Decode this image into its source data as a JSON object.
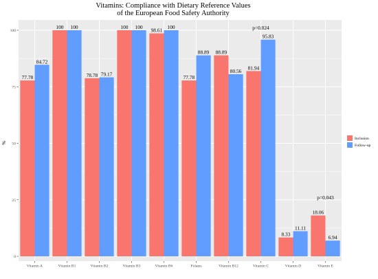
{
  "chart_data": {
    "type": "bar",
    "title": [
      "Vitamins: Compliance with Dietary Reference Values",
      "of the European Food Safety Authority"
    ],
    "xlabel": "",
    "ylabel": "%",
    "ylim": [
      0,
      100
    ],
    "yticks": [
      0,
      25,
      50,
      75,
      100
    ],
    "grid": true,
    "legend_position": "right",
    "categories": [
      "Vitamin A",
      "Vitamin B1",
      "Vitamin B2",
      "Vitamin B3",
      "Vitamin B6",
      "Folates",
      "Vitamin B12",
      "Vitamin C",
      "Vitamin D",
      "Vitamin E"
    ],
    "series": [
      {
        "name": "Inclusion",
        "color": "#F8766D",
        "values": [
          77.78,
          100,
          78.78,
          100,
          98.61,
          77.78,
          88.89,
          81.94,
          8.33,
          18.06
        ]
      },
      {
        "name": "Follow-up",
        "color": "#619CFF",
        "values": [
          84.72,
          100,
          79.17,
          100,
          100,
          88.89,
          80.56,
          95.83,
          11.11,
          6.94
        ]
      }
    ],
    "data_label_text": [
      [
        "77.78",
        "100",
        "78.78",
        "100",
        "98.61",
        "77.78",
        "88.89",
        "81.94",
        "8.33",
        "18.06"
      ],
      [
        "84.72",
        "100",
        "79.17",
        "100",
        "100",
        "88.89",
        "80.56",
        "95.83",
        "11.11",
        "6.94"
      ]
    ],
    "annotations": [
      {
        "category": "Vitamin C",
        "text": "p=0.024",
        "y": 100
      },
      {
        "category": "Vitamin E",
        "text": "p=0.043",
        "y": 25
      }
    ],
    "panel_background": "#EBEBEB"
  }
}
